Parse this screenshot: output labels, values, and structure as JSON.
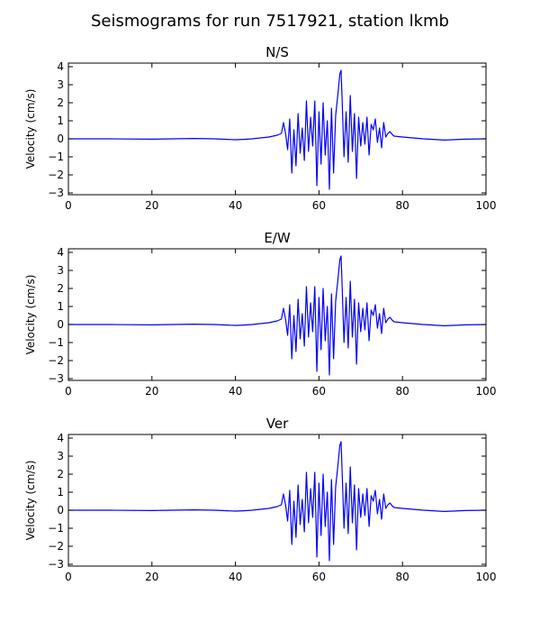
{
  "figure": {
    "title": "Seismograms for run 7517921, station lkmb"
  },
  "chart_data": [
    {
      "type": "line",
      "title": "N/S",
      "xlabel": "",
      "ylabel": "Velocity (cm/s)",
      "xlim": [
        0,
        100
      ],
      "ylim": [
        -3.1,
        4.2
      ],
      "xticks": [
        0,
        20,
        40,
        60,
        80,
        100
      ],
      "yticks": [
        -3,
        -2,
        -1,
        0,
        1,
        2,
        3,
        4
      ],
      "grid": false,
      "color": "#0000ff",
      "x": [
        0,
        10,
        20,
        30,
        35,
        40,
        42,
        44,
        46,
        48,
        50,
        51,
        51.5,
        52,
        52.5,
        53,
        53.5,
        54,
        54.5,
        55,
        55.5,
        56,
        56.5,
        57,
        57.5,
        58,
        58.5,
        59,
        59.5,
        60,
        60.5,
        61,
        61.5,
        62,
        62.5,
        63,
        63.5,
        64,
        64.5,
        65,
        65.3,
        65.6,
        66,
        66.5,
        67,
        67.5,
        68,
        68.5,
        69,
        69.5,
        70,
        70.5,
        71,
        71.5,
        72,
        72.5,
        73,
        73.5,
        74,
        74.5,
        75,
        75.5,
        76,
        76.5,
        77,
        77.5,
        78,
        80,
        85,
        90,
        95,
        100
      ],
      "y": [
        0,
        0,
        -0.02,
        0.02,
        0,
        -0.05,
        -0.03,
        0,
        0.05,
        0.1,
        0.2,
        0.3,
        0.9,
        0.3,
        -0.6,
        1.1,
        -1.9,
        0.5,
        -1.5,
        1.4,
        -0.8,
        0.6,
        -1.2,
        2.1,
        -0.7,
        1.2,
        -0.4,
        2.1,
        -2.6,
        1.5,
        -1.4,
        2.0,
        -0.9,
        1.0,
        -2.8,
        1.7,
        -1.9,
        1.3,
        2.4,
        3.6,
        3.8,
        1.8,
        -1.0,
        1.5,
        -1.3,
        2.4,
        -0.7,
        1.4,
        -2.2,
        1.2,
        -0.4,
        0.9,
        -0.3,
        1.2,
        -0.9,
        0.8,
        0.5,
        1.1,
        -0.2,
        0.6,
        -0.5,
        0.9,
        0.1,
        0.3,
        0.4,
        0.25,
        0.15,
        0.1,
        0.0,
        -0.07,
        -0.02,
        0
      ]
    },
    {
      "type": "line",
      "title": "E/W",
      "xlabel": "",
      "ylabel": "Velocity (cm/s)",
      "xlim": [
        0,
        100
      ],
      "ylim": [
        -3.1,
        4.2
      ],
      "xticks": [
        0,
        20,
        40,
        60,
        80,
        100
      ],
      "yticks": [
        -3,
        -2,
        -1,
        0,
        1,
        2,
        3,
        4
      ],
      "grid": false,
      "color": "#0000ff",
      "x": [
        0,
        10,
        20,
        30,
        35,
        40,
        42,
        44,
        46,
        48,
        50,
        51,
        51.5,
        52,
        52.5,
        53,
        53.5,
        54,
        54.5,
        55,
        55.5,
        56,
        56.5,
        57,
        57.5,
        58,
        58.5,
        59,
        59.5,
        60,
        60.5,
        61,
        61.5,
        62,
        62.5,
        63,
        63.5,
        64,
        64.5,
        65,
        65.3,
        65.6,
        66,
        66.5,
        67,
        67.5,
        68,
        68.5,
        69,
        69.5,
        70,
        70.5,
        71,
        71.5,
        72,
        72.5,
        73,
        73.5,
        74,
        74.5,
        75,
        75.5,
        76,
        76.5,
        77,
        77.5,
        78,
        80,
        85,
        90,
        95,
        100
      ],
      "y": [
        0,
        0,
        -0.02,
        0.02,
        0,
        -0.05,
        -0.03,
        0,
        0.05,
        0.1,
        0.2,
        0.3,
        0.9,
        0.3,
        -0.6,
        1.1,
        -1.9,
        0.5,
        -1.5,
        1.4,
        -0.8,
        0.6,
        -1.2,
        2.1,
        -0.7,
        1.2,
        -0.4,
        2.1,
        -2.6,
        1.5,
        -1.4,
        2.0,
        -0.9,
        1.0,
        -2.8,
        1.7,
        -1.9,
        1.3,
        2.4,
        3.6,
        3.8,
        1.8,
        -1.0,
        1.5,
        -1.3,
        2.4,
        -0.7,
        1.4,
        -2.2,
        1.2,
        -0.4,
        0.9,
        -0.3,
        1.2,
        -0.9,
        0.8,
        0.5,
        1.1,
        -0.2,
        0.6,
        -0.5,
        0.9,
        0.1,
        0.3,
        0.4,
        0.25,
        0.15,
        0.1,
        0.0,
        -0.07,
        -0.02,
        0
      ]
    },
    {
      "type": "line",
      "title": "Ver",
      "xlabel": "",
      "ylabel": "Velocity (cm/s)",
      "xlim": [
        0,
        100
      ],
      "ylim": [
        -3.1,
        4.2
      ],
      "xticks": [
        0,
        20,
        40,
        60,
        80,
        100
      ],
      "yticks": [
        -3,
        -2,
        -1,
        0,
        1,
        2,
        3,
        4
      ],
      "grid": false,
      "color": "#0000ff",
      "x": [
        0,
        10,
        20,
        30,
        35,
        40,
        42,
        44,
        46,
        48,
        50,
        51,
        51.5,
        52,
        52.5,
        53,
        53.5,
        54,
        54.5,
        55,
        55.5,
        56,
        56.5,
        57,
        57.5,
        58,
        58.5,
        59,
        59.5,
        60,
        60.5,
        61,
        61.5,
        62,
        62.5,
        63,
        63.5,
        64,
        64.5,
        65,
        65.3,
        65.6,
        66,
        66.5,
        67,
        67.5,
        68,
        68.5,
        69,
        69.5,
        70,
        70.5,
        71,
        71.5,
        72,
        72.5,
        73,
        73.5,
        74,
        74.5,
        75,
        75.5,
        76,
        76.5,
        77,
        77.5,
        78,
        80,
        85,
        90,
        95,
        100
      ],
      "y": [
        0,
        0,
        -0.02,
        0.02,
        0,
        -0.05,
        -0.03,
        0,
        0.05,
        0.1,
        0.2,
        0.3,
        0.9,
        0.3,
        -0.6,
        1.1,
        -1.9,
        0.5,
        -1.5,
        1.4,
        -0.8,
        0.6,
        -1.2,
        2.1,
        -0.7,
        1.2,
        -0.4,
        2.1,
        -2.6,
        1.5,
        -1.4,
        2.0,
        -0.9,
        1.0,
        -2.8,
        1.7,
        -1.9,
        1.3,
        2.4,
        3.6,
        3.8,
        1.8,
        -1.0,
        1.5,
        -1.3,
        2.4,
        -0.7,
        1.4,
        -2.2,
        1.2,
        -0.4,
        0.9,
        -0.3,
        1.2,
        -0.9,
        0.8,
        0.5,
        1.1,
        -0.2,
        0.6,
        -0.5,
        0.9,
        0.1,
        0.3,
        0.4,
        0.25,
        0.15,
        0.1,
        0.0,
        -0.07,
        -0.02,
        0
      ]
    }
  ]
}
